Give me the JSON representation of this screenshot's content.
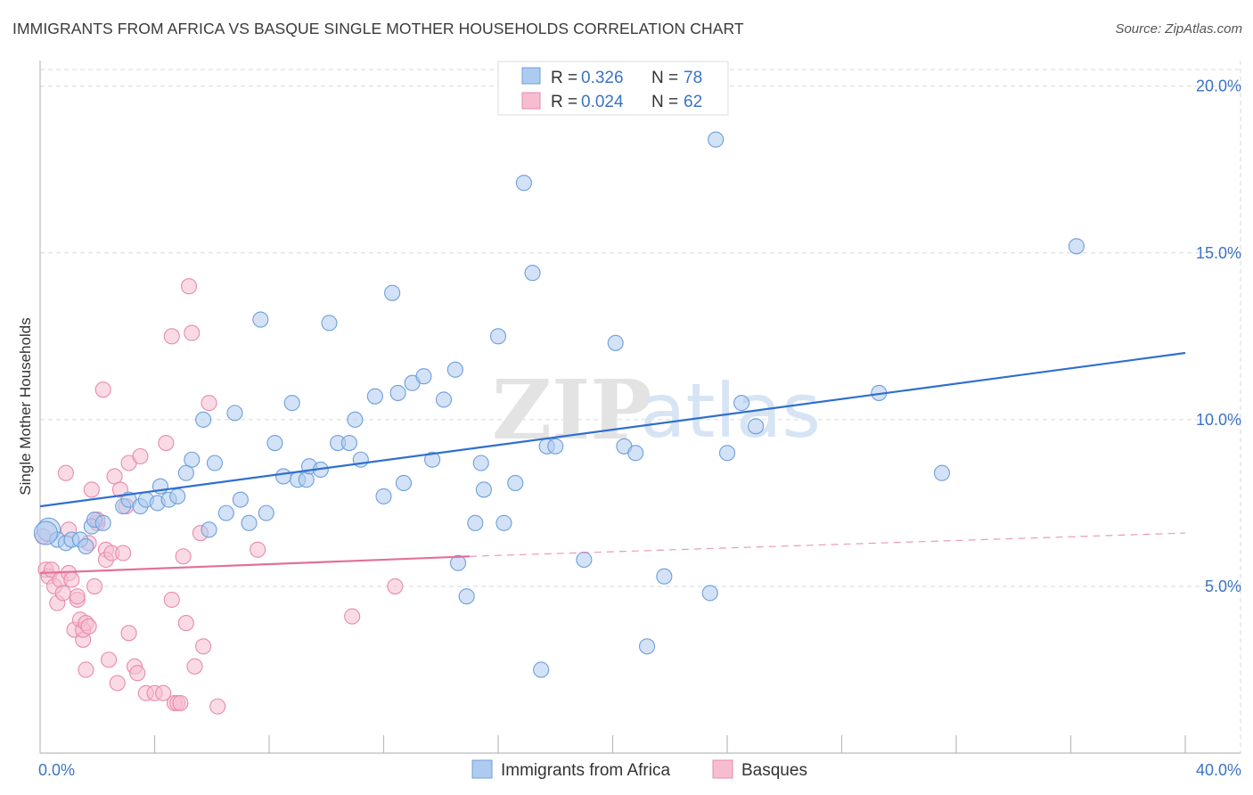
{
  "header": {
    "title": "IMMIGRANTS FROM AFRICA VS BASQUE SINGLE MOTHER HOUSEHOLDS CORRELATION CHART",
    "source": "Source: ZipAtlas.com"
  },
  "watermark": {
    "zip": "ZIP",
    "atlas": "atlas"
  },
  "legend": {
    "rows": [
      {
        "r_label": "R =",
        "r_value": "0.326",
        "n_label": "N =",
        "n_value": "78"
      },
      {
        "r_label": "R =",
        "r_value": "0.024",
        "n_label": "N =",
        "n_value": "62"
      }
    ]
  },
  "colors": {
    "africa_fill": "#aecbef",
    "africa_stroke": "#6d9fdc",
    "africa_line": "#2f6fcf",
    "basque_fill": "#f6bdd0",
    "basque_stroke": "#e98aab",
    "basque_line": "#e2709a",
    "tick_text": "#3b73c4",
    "grid": "#d9d9d9"
  },
  "chart_data": {
    "type": "scatter",
    "xlabel": "",
    "ylabel": "Single Mother Households",
    "xlim": [
      0,
      40
    ],
    "ylim": [
      0,
      20.5
    ],
    "x_tick_labels": [
      {
        "value": 0,
        "label": "0.0%"
      },
      {
        "value": 40,
        "label": "40.0%"
      }
    ],
    "y_tick_labels": [
      {
        "value": 5,
        "label": "5.0%"
      },
      {
        "value": 10,
        "label": "10.0%"
      },
      {
        "value": 15,
        "label": "15.0%"
      },
      {
        "value": 20,
        "label": "20.0%"
      }
    ],
    "y_gridlines": [
      5,
      10,
      15,
      20
    ],
    "x_minor_ticks": [
      4,
      8,
      12,
      16,
      20,
      24,
      28,
      32,
      36,
      40
    ],
    "legend_position": "top-center",
    "series": [
      {
        "name": "Immigrants from Africa",
        "trend": {
          "x0": 0,
          "y0": 7.4,
          "x1": 40,
          "y1": 12.0
        },
        "points": [
          [
            0.3,
            6.7
          ],
          [
            0.6,
            6.4
          ],
          [
            0.9,
            6.3
          ],
          [
            1.1,
            6.4
          ],
          [
            1.4,
            6.4
          ],
          [
            1.6,
            6.2
          ],
          [
            1.8,
            6.8
          ],
          [
            1.9,
            7.0
          ],
          [
            2.2,
            6.9
          ],
          [
            2.9,
            7.4
          ],
          [
            3.1,
            7.6
          ],
          [
            3.5,
            7.4
          ],
          [
            3.7,
            7.6
          ],
          [
            4.1,
            7.5
          ],
          [
            4.2,
            8.0
          ],
          [
            4.5,
            7.6
          ],
          [
            4.8,
            7.7
          ],
          [
            5.1,
            8.4
          ],
          [
            5.3,
            8.8
          ],
          [
            5.7,
            10.0
          ],
          [
            5.9,
            6.7
          ],
          [
            6.1,
            8.7
          ],
          [
            6.5,
            7.2
          ],
          [
            6.8,
            10.2
          ],
          [
            7.0,
            7.6
          ],
          [
            7.3,
            6.9
          ],
          [
            7.7,
            13.0
          ],
          [
            7.9,
            7.2
          ],
          [
            8.2,
            9.3
          ],
          [
            8.5,
            8.3
          ],
          [
            8.8,
            10.5
          ],
          [
            9.0,
            8.2
          ],
          [
            9.3,
            8.2
          ],
          [
            9.4,
            8.6
          ],
          [
            9.8,
            8.5
          ],
          [
            10.1,
            12.9
          ],
          [
            10.4,
            9.3
          ],
          [
            10.8,
            9.3
          ],
          [
            11.0,
            10.0
          ],
          [
            11.2,
            8.8
          ],
          [
            11.7,
            10.7
          ],
          [
            12.0,
            7.7
          ],
          [
            12.3,
            13.8
          ],
          [
            12.5,
            10.8
          ],
          [
            12.7,
            8.1
          ],
          [
            13.0,
            11.1
          ],
          [
            13.4,
            11.3
          ],
          [
            13.7,
            8.8
          ],
          [
            14.1,
            10.6
          ],
          [
            14.5,
            11.5
          ],
          [
            14.9,
            4.7
          ],
          [
            14.6,
            5.7
          ],
          [
            15.2,
            6.9
          ],
          [
            15.4,
            8.7
          ],
          [
            15.5,
            7.9
          ],
          [
            16.0,
            12.5
          ],
          [
            16.2,
            6.9
          ],
          [
            16.6,
            8.1
          ],
          [
            16.9,
            17.1
          ],
          [
            17.2,
            14.4
          ],
          [
            17.5,
            2.5
          ],
          [
            17.7,
            9.2
          ],
          [
            18.0,
            9.2
          ],
          [
            19.0,
            5.8
          ],
          [
            20.1,
            12.3
          ],
          [
            20.4,
            9.2
          ],
          [
            20.8,
            9.0
          ],
          [
            21.2,
            3.2
          ],
          [
            21.8,
            5.3
          ],
          [
            23.4,
            4.8
          ],
          [
            23.6,
            18.4
          ],
          [
            24.0,
            9.0
          ],
          [
            24.5,
            10.5
          ],
          [
            25.0,
            9.8
          ],
          [
            29.3,
            10.8
          ],
          [
            31.5,
            8.4
          ],
          [
            36.2,
            15.2
          ],
          [
            0.2,
            6.6
          ]
        ]
      },
      {
        "name": "Basques",
        "trend": {
          "x0": 0,
          "y0": 5.4,
          "x1": 15,
          "y1": 5.9,
          "dash_x1": 40,
          "dash_y1": 6.6
        },
        "points": [
          [
            0.1,
            6.5
          ],
          [
            0.2,
            5.5
          ],
          [
            0.3,
            5.3
          ],
          [
            0.4,
            5.5
          ],
          [
            0.5,
            5.0
          ],
          [
            0.6,
            4.5
          ],
          [
            0.7,
            5.2
          ],
          [
            0.8,
            4.8
          ],
          [
            0.9,
            8.4
          ],
          [
            1.0,
            5.4
          ],
          [
            1.0,
            6.7
          ],
          [
            1.1,
            5.2
          ],
          [
            1.2,
            3.7
          ],
          [
            1.3,
            4.6
          ],
          [
            1.3,
            4.7
          ],
          [
            1.4,
            4.0
          ],
          [
            1.5,
            3.4
          ],
          [
            1.5,
            3.7
          ],
          [
            1.6,
            3.9
          ],
          [
            1.6,
            2.5
          ],
          [
            1.7,
            3.8
          ],
          [
            1.7,
            6.3
          ],
          [
            1.8,
            7.9
          ],
          [
            1.9,
            5.0
          ],
          [
            2.0,
            6.9
          ],
          [
            2.0,
            7.0
          ],
          [
            2.2,
            10.9
          ],
          [
            2.3,
            6.1
          ],
          [
            2.3,
            5.8
          ],
          [
            2.4,
            2.8
          ],
          [
            2.5,
            6.0
          ],
          [
            2.6,
            8.3
          ],
          [
            2.7,
            2.1
          ],
          [
            2.8,
            7.9
          ],
          [
            2.9,
            6.0
          ],
          [
            3.0,
            7.4
          ],
          [
            3.1,
            8.7
          ],
          [
            3.1,
            3.6
          ],
          [
            3.3,
            2.6
          ],
          [
            3.4,
            2.4
          ],
          [
            3.5,
            8.9
          ],
          [
            3.7,
            1.8
          ],
          [
            4.0,
            1.8
          ],
          [
            4.3,
            1.8
          ],
          [
            4.4,
            9.3
          ],
          [
            4.6,
            12.5
          ],
          [
            4.6,
            4.6
          ],
          [
            4.7,
            1.5
          ],
          [
            4.8,
            1.5
          ],
          [
            4.9,
            1.5
          ],
          [
            5.0,
            5.9
          ],
          [
            5.1,
            3.9
          ],
          [
            5.2,
            14.0
          ],
          [
            5.3,
            12.6
          ],
          [
            5.4,
            2.6
          ],
          [
            5.6,
            6.6
          ],
          [
            5.7,
            3.2
          ],
          [
            5.9,
            10.5
          ],
          [
            6.2,
            1.4
          ],
          [
            7.6,
            6.1
          ],
          [
            10.9,
            4.1
          ],
          [
            12.4,
            5.0
          ]
        ]
      }
    ]
  }
}
